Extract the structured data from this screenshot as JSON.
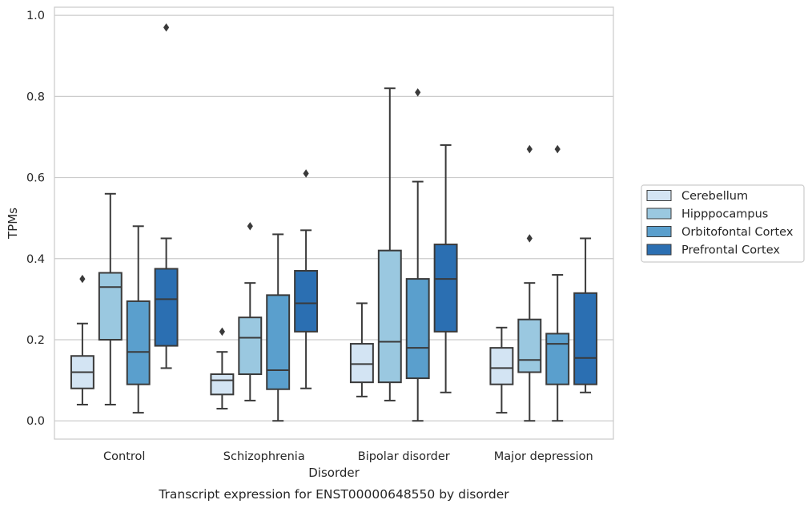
{
  "chart_data": {
    "type": "box",
    "title": "",
    "caption": "Transcript expression for ENST00000648550 by disorder",
    "xlabel": "Disorder",
    "ylabel": "TPMs",
    "ylim": [
      -0.045,
      1.02
    ],
    "yticks": [
      {
        "value": 0.0,
        "label": "0.0"
      },
      {
        "value": 0.2,
        "label": "0.2"
      },
      {
        "value": 0.4,
        "label": "0.4"
      },
      {
        "value": 0.6,
        "label": "0.6"
      },
      {
        "value": 0.8,
        "label": "0.8"
      },
      {
        "value": 1.0,
        "label": "1.0"
      }
    ],
    "grid": true,
    "legend_position": "right, outside plot",
    "categories": [
      "Control",
      "Schizophrenia",
      "Bipolar disorder",
      "Major depression"
    ],
    "series": [
      {
        "name": "Cerebellum",
        "color": "#d3e4f3",
        "boxes": [
          {
            "whisker_low": 0.04,
            "q1": 0.08,
            "median": 0.12,
            "q3": 0.16,
            "whisker_high": 0.24,
            "outliers": [
              0.35
            ]
          },
          {
            "whisker_low": 0.03,
            "q1": 0.065,
            "median": 0.1,
            "q3": 0.115,
            "whisker_high": 0.17,
            "outliers": [
              0.22
            ]
          },
          {
            "whisker_low": 0.06,
            "q1": 0.095,
            "median": 0.14,
            "q3": 0.19,
            "whisker_high": 0.29,
            "outliers": []
          },
          {
            "whisker_low": 0.02,
            "q1": 0.09,
            "median": 0.13,
            "q3": 0.18,
            "whisker_high": 0.23,
            "outliers": []
          }
        ]
      },
      {
        "name": "Hipppocampus",
        "color": "#9ac8e0",
        "boxes": [
          {
            "whisker_low": 0.04,
            "q1": 0.2,
            "median": 0.33,
            "q3": 0.365,
            "whisker_high": 0.56,
            "outliers": []
          },
          {
            "whisker_low": 0.05,
            "q1": 0.115,
            "median": 0.205,
            "q3": 0.255,
            "whisker_high": 0.34,
            "outliers": [
              0.48
            ]
          },
          {
            "whisker_low": 0.05,
            "q1": 0.095,
            "median": 0.195,
            "q3": 0.42,
            "whisker_high": 0.82,
            "outliers": []
          },
          {
            "whisker_low": 0.0,
            "q1": 0.12,
            "median": 0.15,
            "q3": 0.25,
            "whisker_high": 0.34,
            "outliers": [
              0.45,
              0.67
            ]
          }
        ]
      },
      {
        "name": "Orbitofontal Cortex",
        "color": "#5a9fcd",
        "boxes": [
          {
            "whisker_low": 0.02,
            "q1": 0.09,
            "median": 0.17,
            "q3": 0.295,
            "whisker_high": 0.48,
            "outliers": []
          },
          {
            "whisker_low": 0.0,
            "q1": 0.078,
            "median": 0.125,
            "q3": 0.31,
            "whisker_high": 0.46,
            "outliers": []
          },
          {
            "whisker_low": 0.0,
            "q1": 0.105,
            "median": 0.18,
            "q3": 0.35,
            "whisker_high": 0.59,
            "outliers": [
              0.81
            ]
          },
          {
            "whisker_low": 0.0,
            "q1": 0.09,
            "median": 0.19,
            "q3": 0.215,
            "whisker_high": 0.36,
            "outliers": [
              0.67
            ]
          }
        ]
      },
      {
        "name": "Prefrontal Cortex",
        "color": "#2b6fb2",
        "boxes": [
          {
            "whisker_low": 0.13,
            "q1": 0.185,
            "median": 0.3,
            "q3": 0.375,
            "whisker_high": 0.45,
            "outliers": [
              0.97
            ]
          },
          {
            "whisker_low": 0.08,
            "q1": 0.22,
            "median": 0.29,
            "q3": 0.37,
            "whisker_high": 0.47,
            "outliers": [
              0.61
            ]
          },
          {
            "whisker_low": 0.07,
            "q1": 0.22,
            "median": 0.35,
            "q3": 0.435,
            "whisker_high": 0.68,
            "outliers": []
          },
          {
            "whisker_low": 0.07,
            "q1": 0.09,
            "median": 0.155,
            "q3": 0.315,
            "whisker_high": 0.45,
            "outliers": []
          }
        ]
      }
    ]
  }
}
